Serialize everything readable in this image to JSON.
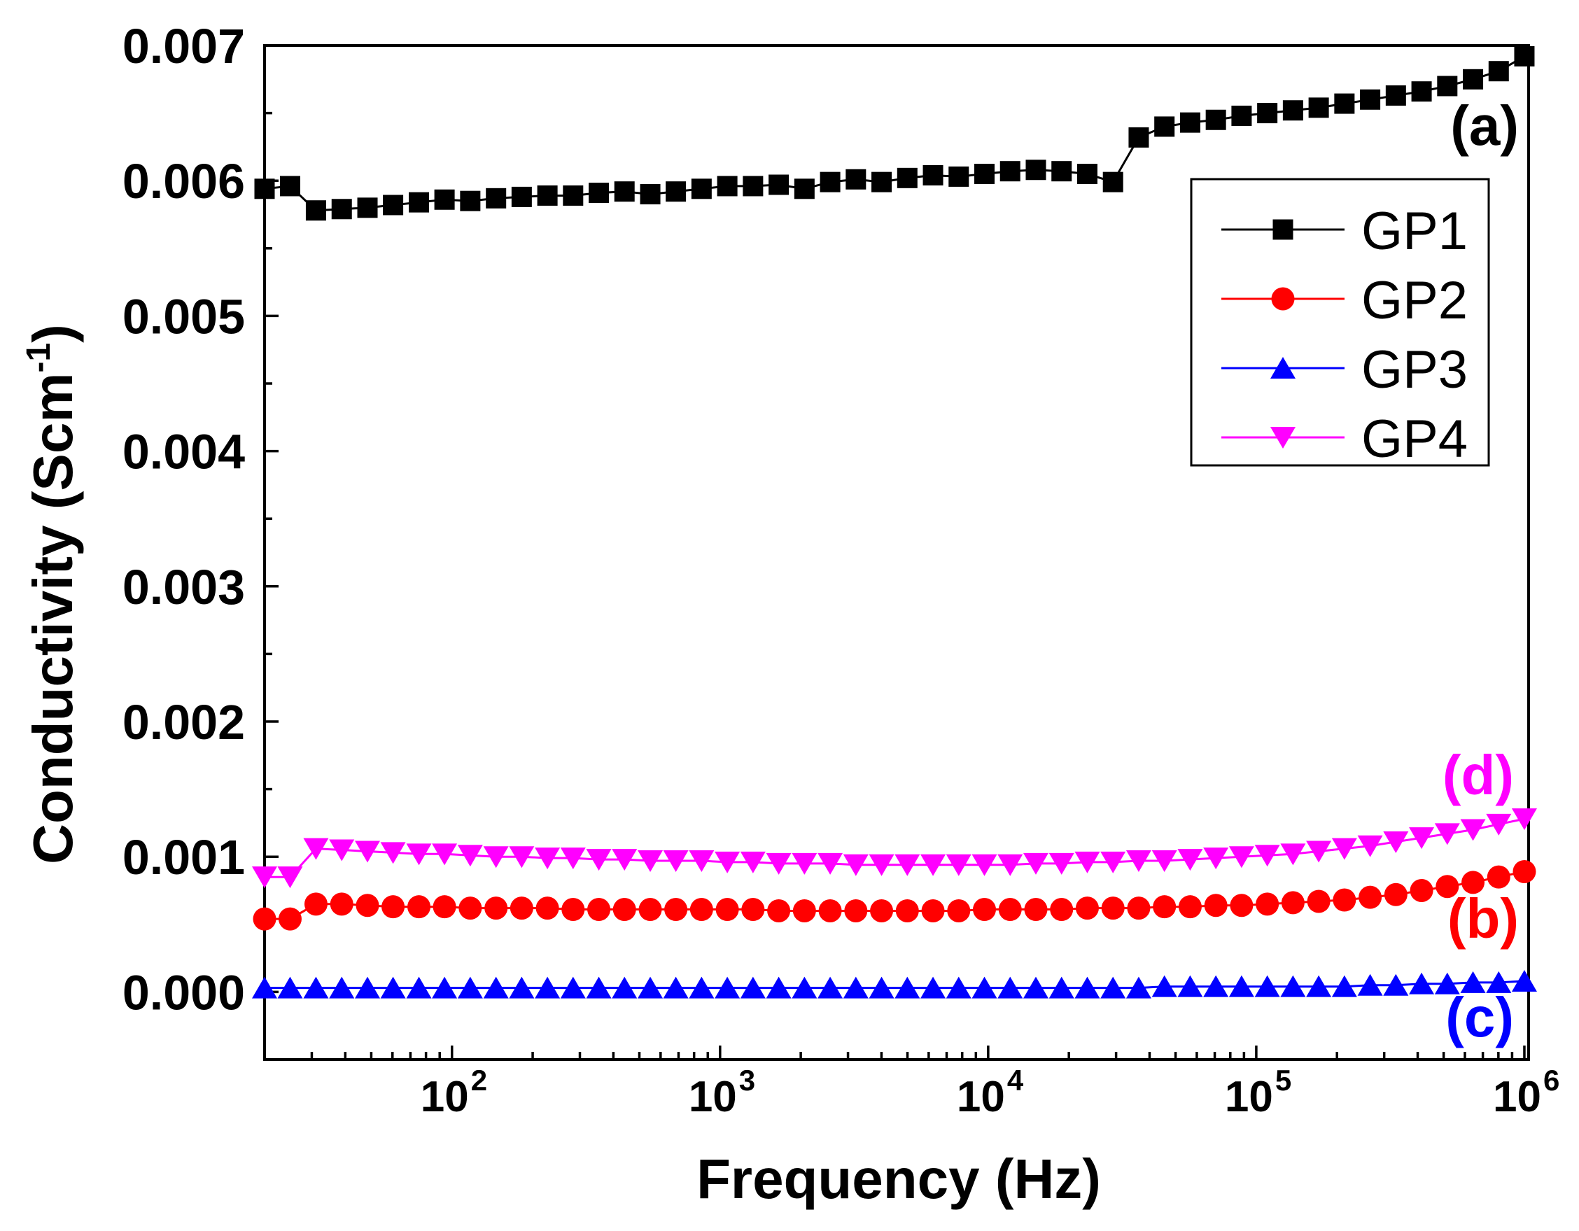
{
  "chart_data": {
    "type": "line",
    "title": "",
    "xlabel": "Frequency (Hz)",
    "ylabel": {
      "text": "Conductivity (Scm",
      "superscript": "-1",
      "suffix": ")"
    },
    "xlim": [
      20,
      1037000
    ],
    "ylim": [
      -0.0005,
      0.007
    ],
    "xticks": [
      100,
      1000,
      10000,
      100000,
      1000000
    ],
    "xtick_labels": [
      {
        "base": "10",
        "exponent": "2"
      },
      {
        "base": "10",
        "exponent": "3"
      },
      {
        "base": "10",
        "exponent": "4"
      },
      {
        "base": "10",
        "exponent": "5"
      },
      {
        "base": "10",
        "exponent": "6"
      }
    ],
    "yticks": [
      0,
      0.001,
      0.002,
      0.003,
      0.004,
      0.005,
      0.006,
      0.007
    ],
    "ytick_labels": [
      "0.000",
      "0.001",
      "0.002",
      "0.003",
      "0.004",
      "0.005",
      "0.006",
      "0.007"
    ],
    "x": [
      20,
      24.9,
      31.1,
      38.8,
      48.4,
      60.3,
      75.3,
      93.8,
      117,
      146,
      182,
      227,
      283,
      353,
      440,
      549,
      684,
      853,
      1064,
      1327,
      1655,
      2064,
      2574,
      3210,
      4003,
      4993,
      6227,
      7765,
      9684,
      12077,
      15062,
      18784,
      23426,
      29216,
      36436,
      45440,
      56670,
      70674,
      88140,
      109920,
      137085,
      170963,
      213213,
      265903,
      331616,
      413567,
      515769,
      643227,
      802184,
      1000000
    ],
    "series": [
      {
        "name": "GP1",
        "color": "#000000",
        "marker": "square",
        "values": [
          0.00594,
          0.00596,
          0.00578,
          0.00579,
          0.0058,
          0.00582,
          0.00584,
          0.00586,
          0.00585,
          0.00587,
          0.00588,
          0.00589,
          0.00589,
          0.00591,
          0.00592,
          0.0059,
          0.00592,
          0.00594,
          0.00596,
          0.00596,
          0.00597,
          0.00594,
          0.00599,
          0.00601,
          0.00599,
          0.00602,
          0.00604,
          0.00603,
          0.00605,
          0.00607,
          0.00608,
          0.00607,
          0.00605,
          0.00599,
          0.00632,
          0.0064,
          0.00643,
          0.00645,
          0.00648,
          0.0065,
          0.00652,
          0.00654,
          0.00657,
          0.0066,
          0.00663,
          0.00666,
          0.0067,
          0.00675,
          0.00681,
          0.00692
        ]
      },
      {
        "name": "GP2",
        "color": "#ff0000",
        "marker": "circle",
        "values": [
          0.00054,
          0.00054,
          0.00065,
          0.00065,
          0.00064,
          0.00063,
          0.00063,
          0.00063,
          0.00062,
          0.00062,
          0.00062,
          0.00062,
          0.00061,
          0.00061,
          0.00061,
          0.00061,
          0.00061,
          0.00061,
          0.00061,
          0.00061,
          0.0006,
          0.0006,
          0.0006,
          0.0006,
          0.0006,
          0.0006,
          0.0006,
          0.0006,
          0.00061,
          0.00061,
          0.00061,
          0.00061,
          0.00062,
          0.00062,
          0.00062,
          0.00063,
          0.00063,
          0.00064,
          0.00064,
          0.00065,
          0.00066,
          0.00067,
          0.00068,
          0.0007,
          0.00072,
          0.00075,
          0.00078,
          0.00081,
          0.00085,
          0.00089
        ]
      },
      {
        "name": "GP3",
        "color": "#0000ff",
        "marker": "triangle-up",
        "values": [
          3e-05,
          3e-05,
          3e-05,
          3e-05,
          3e-05,
          3e-05,
          3e-05,
          3e-05,
          3e-05,
          3e-05,
          3e-05,
          3e-05,
          3e-05,
          3e-05,
          3e-05,
          3e-05,
          3e-05,
          3e-05,
          3e-05,
          3e-05,
          3e-05,
          3e-05,
          3e-05,
          3e-05,
          3e-05,
          3e-05,
          3e-05,
          3e-05,
          3e-05,
          3e-05,
          3e-05,
          3e-05,
          3e-05,
          3e-05,
          3e-05,
          4e-05,
          4e-05,
          4e-05,
          4e-05,
          4e-05,
          4e-05,
          4e-05,
          4e-05,
          5e-05,
          5e-05,
          6e-05,
          6e-05,
          7e-05,
          7e-05,
          8e-05
        ]
      },
      {
        "name": "GP4",
        "color": "#ff00ff",
        "marker": "triangle-down",
        "values": [
          0.00085,
          0.00085,
          0.00106,
          0.00105,
          0.00104,
          0.00103,
          0.00102,
          0.00102,
          0.00101,
          0.001,
          0.001,
          0.00099,
          0.00099,
          0.00098,
          0.00098,
          0.00097,
          0.00097,
          0.00097,
          0.00096,
          0.00096,
          0.00095,
          0.00095,
          0.00095,
          0.00094,
          0.00094,
          0.00094,
          0.00094,
          0.00094,
          0.00094,
          0.00094,
          0.00095,
          0.00095,
          0.00096,
          0.00096,
          0.00097,
          0.00097,
          0.00098,
          0.00099,
          0.001,
          0.00101,
          0.00102,
          0.00104,
          0.00106,
          0.00108,
          0.00111,
          0.00114,
          0.00117,
          0.0012,
          0.00124,
          0.00128
        ]
      }
    ],
    "legend": {
      "position": "top-right"
    },
    "annotations": [
      {
        "text": "(a)",
        "color": "#000000"
      },
      {
        "text": "(b)",
        "color": "#ff0000"
      },
      {
        "text": "(c)",
        "color": "#0000ff"
      },
      {
        "text": "(d)",
        "color": "#ff00ff"
      }
    ]
  }
}
